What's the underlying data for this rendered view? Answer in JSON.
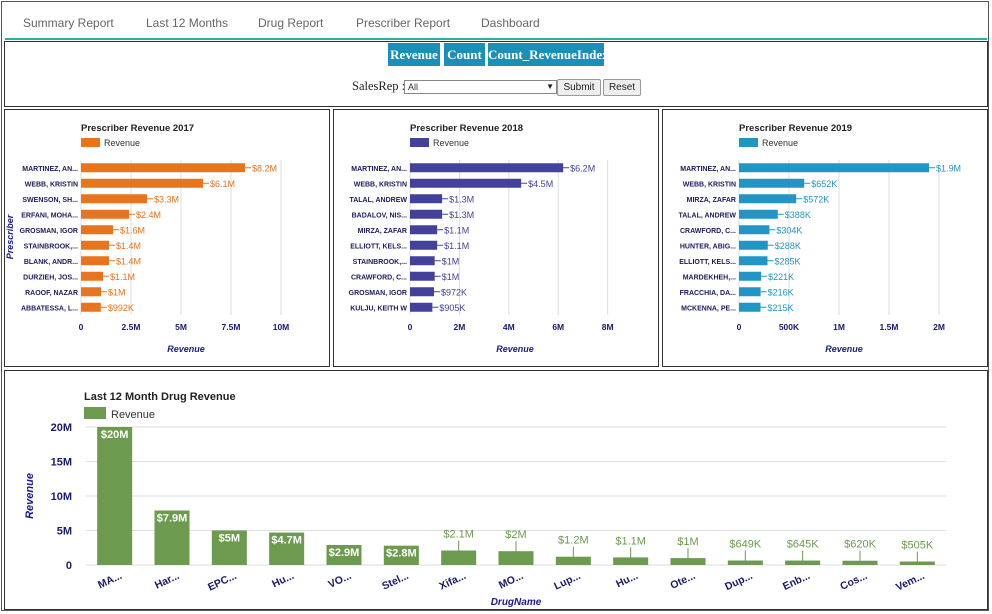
{
  "nav": [
    {
      "label": "Summary Report"
    },
    {
      "label": "Last 12 Months"
    },
    {
      "label": "Drug Report"
    },
    {
      "label": "Prescriber Report"
    },
    {
      "label": "Dashboard"
    }
  ],
  "tabs": [
    {
      "label": "Revenue"
    },
    {
      "label": "Count"
    },
    {
      "label": "Count_RevenueIndex"
    }
  ],
  "filter": {
    "label": "SalesRep :",
    "select_value": "All",
    "submit_label": "Submit",
    "reset_label": "Reset"
  },
  "colors": {
    "accent_rule": "#2ab0a0",
    "tab_bg": "#1a8fb8",
    "rev2017": "#e8741e",
    "rev2018": "#44419a",
    "rev2019": "#2196c4",
    "drug": "#6c9a4e"
  },
  "chart_data": [
    {
      "type": "bar",
      "orientation": "horizontal",
      "title": "Prescriber Revenue 2017",
      "legend": "Revenue",
      "xlabel": "Revenue",
      "ylabel": "Prescriber",
      "color": "#e8741e",
      "categories": [
        "MARTINEZ, AN...",
        "WEBB, KRISTIN",
        "SWENSON, SH...",
        "ERFANI, MOHA...",
        "GROSMAN, IGOR",
        "STAINBROOK,...",
        "BLANK, ANDR...",
        "DURZIEH, JOS...",
        "RAOOF, NAZAR",
        "ABBATESSA, L..."
      ],
      "values": [
        8.2,
        6.1,
        3.3,
        2.4,
        1.6,
        1.4,
        1.4,
        1.1,
        1.0,
        0.992
      ],
      "value_labels": [
        "$8.2M",
        "$6.1M",
        "$3.3M",
        "$2.4M",
        "$1.6M",
        "$1.4M",
        "$1.4M",
        "$1.1M",
        "$1M",
        "$992K"
      ],
      "xlim": [
        0,
        10.5
      ],
      "ticks": [
        0,
        2.5,
        5,
        7.5,
        10
      ],
      "tick_labels": [
        "0",
        "2.5M",
        "5M",
        "7.5M",
        "10M"
      ]
    },
    {
      "type": "bar",
      "orientation": "horizontal",
      "title": "Prescriber Revenue 2018",
      "legend": "Revenue",
      "xlabel": "Revenue",
      "ylabel": "",
      "color": "#44419a",
      "categories": [
        "MARTINEZ, AN...",
        "WEBB, KRISTIN",
        "TALAL, ANDREW",
        "BADALOV, NIS...",
        "MIRZA, ZAFAR",
        "ELLIOTT, KELS...",
        "STAINBROOK,...",
        "CRAWFORD, C...",
        "GROSMAN, IGOR",
        "KULJU, KEITH W"
      ],
      "values": [
        6.2,
        4.5,
        1.3,
        1.3,
        1.1,
        1.1,
        1.0,
        1.0,
        0.972,
        0.905
      ],
      "value_labels": [
        "$6.2M",
        "$4.5M",
        "$1.3M",
        "$1.3M",
        "$1.1M",
        "$1.1M",
        "$1M",
        "$1M",
        "$972K",
        "$905K"
      ],
      "xlim": [
        0,
        8.5
      ],
      "ticks": [
        0,
        2,
        4,
        6,
        8
      ],
      "tick_labels": [
        "0",
        "2M",
        "4M",
        "6M",
        "8M"
      ]
    },
    {
      "type": "bar",
      "orientation": "horizontal",
      "title": "Prescriber Revenue 2019",
      "legend": "Revenue",
      "xlabel": "Revenue",
      "ylabel": "",
      "color": "#2196c4",
      "categories": [
        "MARTINEZ, AN...",
        "WEBB, KRISTIN",
        "MIRZA, ZAFAR",
        "TALAL, ANDREW",
        "CRAWFORD, C...",
        "HUNTER, ABIG...",
        "ELLIOTT, KELS...",
        "MARDEKHEH,...",
        "FRACCHIA, DA...",
        "MCKENNA, PE..."
      ],
      "values": [
        1.9,
        0.652,
        0.572,
        0.388,
        0.304,
        0.288,
        0.285,
        0.221,
        0.216,
        0.215
      ],
      "value_labels": [
        "$1.9M",
        "$652K",
        "$572K",
        "$388K",
        "$304K",
        "$288K",
        "$285K",
        "$221K",
        "$216K",
        "$215K"
      ],
      "xlim": [
        0,
        2.1
      ],
      "ticks": [
        0,
        0.5,
        1,
        1.5,
        2
      ],
      "tick_labels": [
        "0",
        "500K",
        "1M",
        "1.5M",
        "2M"
      ]
    },
    {
      "type": "bar",
      "orientation": "vertical",
      "title": "Last 12 Month Drug Revenue",
      "legend": "Revenue",
      "xlabel": "DrugName",
      "ylabel": "Revenue",
      "color": "#6c9a4e",
      "categories": [
        "MA...",
        "Har...",
        "EPC...",
        "Hu...",
        "VO...",
        "Stel...",
        "Xifa...",
        "MO...",
        "Lup...",
        "Hu...",
        "Ote...",
        "Dup...",
        "Enb...",
        "Cos...",
        "Vem..."
      ],
      "values": [
        20,
        7.9,
        5,
        4.7,
        2.9,
        2.8,
        2.1,
        2.0,
        1.2,
        1.1,
        1.0,
        0.649,
        0.645,
        0.62,
        0.505
      ],
      "value_labels": [
        "$20M",
        "$7.9M",
        "$5M",
        "$4.7M",
        "$2.9M",
        "$2.8M",
        "$2.1M",
        "$2M",
        "$1.2M",
        "$1.1M",
        "$1M",
        "$649K",
        "$645K",
        "$620K",
        "$505K"
      ],
      "ylim": [
        0,
        20
      ],
      "ticks": [
        0,
        5,
        10,
        15,
        20
      ],
      "tick_labels": [
        "0",
        "5M",
        "10M",
        "15M",
        "20M"
      ]
    }
  ]
}
